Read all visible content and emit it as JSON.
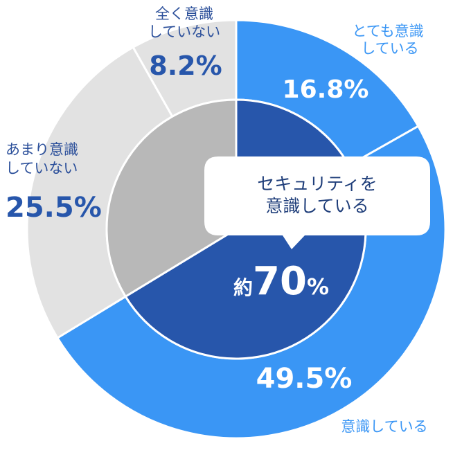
{
  "chart_data": {
    "type": "pie",
    "outer_ring": {
      "categories": [
        "とても意識している",
        "意識している",
        "あまり意識していない",
        "全く意識していない"
      ],
      "values": [
        16.8,
        49.5,
        25.5,
        8.2
      ],
      "value_labels": [
        "16.8%",
        "49.5%",
        "25.5%",
        "8.2%"
      ],
      "colors": [
        "#3a96f5",
        "#3a96f5",
        "#e2e2e2",
        "#e2e2e2"
      ]
    },
    "inner_ring": {
      "values": [
        66.3,
        33.7
      ],
      "colors": [
        "#2756ab",
        "#b8b8b8"
      ]
    },
    "labels": {
      "very_aware": [
        "とても意識",
        "している"
      ],
      "aware": "意識している",
      "not_very": [
        "あまり意識",
        "していない"
      ],
      "not_at_all": [
        "全く意識",
        "していない"
      ],
      "very_aware_value": "16.8%",
      "aware_value": "49.5%",
      "not_very_value": "25.5%",
      "not_at_all_value": "8.2%"
    },
    "callout": {
      "lines": [
        "セキュリティを",
        "意識している"
      ],
      "prefix": "約",
      "number": "70",
      "unit": "%"
    },
    "label_colors": {
      "light_blue_text": "#3a96f5",
      "dark_blue_text": "#2756ab",
      "gray_text": "#2b4f9a",
      "white": "#ffffff"
    }
  }
}
